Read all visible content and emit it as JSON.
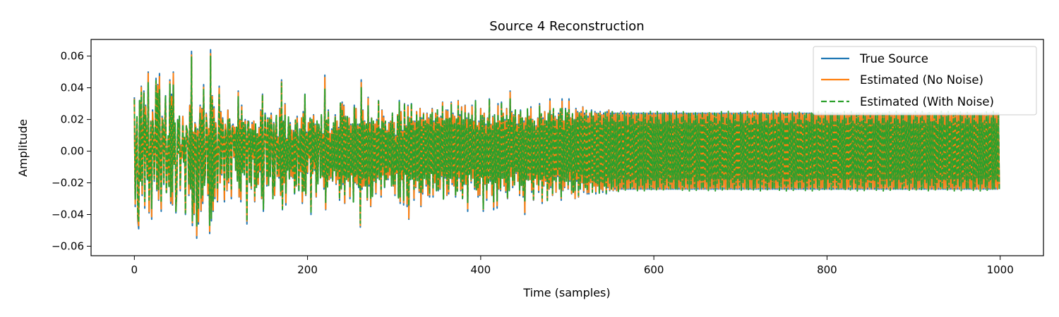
{
  "chart_data": {
    "type": "line",
    "title": "Source 4 Reconstruction",
    "xlabel": "Time (samples)",
    "ylabel": "Amplitude",
    "xlim": [
      -50,
      1050
    ],
    "ylim": [
      -0.066,
      0.0705
    ],
    "x_ticks": [
      0,
      200,
      400,
      600,
      800,
      1000
    ],
    "x_tick_labels": [
      "0",
      "200",
      "400",
      "600",
      "800",
      "1000"
    ],
    "y_ticks": [
      -0.06,
      -0.04,
      -0.02,
      0.0,
      0.02,
      0.04,
      0.06
    ],
    "y_tick_labels": [
      "−0.06",
      "−0.04",
      "−0.02",
      "0.00",
      "0.02",
      "0.04",
      "0.06"
    ],
    "grid": false,
    "legend_position": "top-right",
    "n_samples": 1000,
    "series": [
      {
        "name": "True Source",
        "color": "#1f77b4",
        "style": "solid",
        "values": [
          0.034,
          -0.035,
          0.002,
          0.021,
          -0.044,
          -0.049,
          0.032,
          -0.018,
          0.041,
          -0.028,
          0.012,
          0.038,
          -0.036,
          0.029,
          0.005,
          -0.018,
          0.05,
          -0.039,
          -0.01,
          0.019,
          -0.043,
          0.026,
          0.014,
          -0.019,
          0.008,
          0.046,
          -0.025,
          0.042,
          -0.031,
          0.049,
          -0.012,
          -0.038,
          0.022,
          0.018,
          -0.021,
          0.014,
          0.035,
          -0.026,
          -0.01,
          0.008,
          -0.022,
          0.045,
          -0.033,
          0.036,
          -0.034,
          0.05,
          -0.008,
          0.016,
          -0.039,
          -0.026,
          0.02,
          0.003,
          0.022,
          -0.025,
          0.004,
          -0.004,
          0.022,
          -0.007,
          0.006,
          -0.04,
          0.016,
          0.013,
          0.004,
          -0.028,
          0.029,
          -0.024,
          0.063,
          -0.047,
          0.012,
          -0.04,
          0.018,
          0.015,
          -0.055,
          0.014,
          -0.046,
          0.012,
          0.029,
          -0.038,
          0.027,
          -0.033,
          0.042,
          -0.02,
          -0.015,
          0.024,
          0.016,
          -0.028,
          0.014,
          -0.052,
          0.064,
          -0.044,
          0.035,
          -0.038,
          0.028,
          -0.03,
          0.018,
          0.003,
          -0.032,
          0.009,
          0.041,
          -0.02,
          0.025,
          -0.015,
          0.021,
          0.01,
          -0.032,
          0.017,
          0.012,
          -0.025,
          0.026,
          -0.02,
          0.02,
          0.012,
          -0.03,
          0.016,
          0.017,
          -0.004,
          0.015,
          -0.012,
          0.013,
          -0.018,
          0.038,
          -0.029,
          0.02,
          -0.032,
          0.029,
          -0.012,
          0.016,
          -0.015,
          0.02,
          0.007,
          -0.046,
          0.019,
          0.019,
          -0.019,
          0.012,
          -0.024,
          0.018,
          -0.005,
          0.019,
          -0.032,
          0.016,
          -0.022,
          0.01,
          -0.021,
          0.015,
          -0.013,
          0.026,
          -0.03,
          0.036,
          -0.038,
          0.003,
          0.024,
          0.012,
          -0.022,
          0.021,
          -0.021,
          0.02,
          -0.016,
          0.024,
          0.01,
          -0.03,
          0.018,
          -0.028,
          0.012,
          0.022,
          -0.016,
          0.009,
          -0.017,
          0.027,
          -0.028,
          0.045,
          -0.037,
          0.019,
          -0.02,
          0.03,
          -0.034,
          0.008,
          -0.011,
          0.02,
          -0.017,
          0.018,
          -0.016,
          0.013,
          -0.017,
          0.013,
          -0.027,
          0.018,
          -0.022,
          0.022,
          0.004,
          -0.025,
          0.014,
          -0.013,
          0.021,
          -0.033,
          0.025,
          -0.025,
          0.036,
          -0.028,
          0.012,
          -0.014,
          0.018,
          -0.004,
          0.021,
          -0.04,
          0.019,
          -0.014,
          0.023,
          -0.012,
          0.017,
          -0.029,
          0.018,
          -0.019,
          0.017,
          0.012,
          -0.015,
          0.022,
          -0.016,
          0.011,
          -0.024,
          0.048,
          -0.037,
          0.019,
          -0.022,
          0.026,
          -0.018,
          0.011,
          -0.017,
          0.014,
          -0.019,
          0.016,
          -0.01,
          0.023,
          -0.021,
          0.019,
          -0.018,
          0.015,
          -0.031,
          0.03,
          -0.024,
          0.031,
          -0.021,
          0.029,
          -0.033,
          0.022,
          -0.016,
          0.021,
          -0.019,
          0.021,
          -0.03,
          0.017,
          -0.015,
          0.016,
          -0.032,
          0.029,
          -0.02,
          0.027,
          -0.021,
          0.017,
          -0.023,
          0.015,
          -0.048,
          0.045,
          -0.024,
          0.026,
          -0.022,
          0.019,
          -0.022,
          0.016,
          -0.031,
          0.034,
          -0.022,
          0.018,
          -0.035,
          0.021,
          -0.028,
          0.018,
          -0.019,
          0.017,
          -0.027,
          0.02,
          -0.017,
          0.032,
          -0.016,
          0.014,
          -0.029,
          0.026,
          -0.015,
          0.022,
          -0.023,
          0.017,
          -0.018,
          0.013,
          -0.018,
          0.018,
          -0.015,
          0.019,
          -0.021,
          0.023,
          -0.022,
          0.018,
          -0.028,
          0.01,
          -0.014,
          0.023,
          -0.029,
          0.032,
          -0.033,
          0.025,
          -0.018,
          0.013,
          -0.034,
          0.03,
          -0.013,
          0.016,
          -0.035,
          0.029,
          -0.043,
          0.021,
          -0.018,
          0.03,
          -0.017,
          0.019,
          -0.031,
          0.019,
          -0.023,
          0.025,
          -0.017,
          0.018,
          -0.026,
          0.027,
          -0.035,
          0.021,
          -0.027,
          0.024,
          -0.015,
          0.019,
          -0.022,
          0.024,
          -0.028,
          0.021,
          -0.029,
          0.022,
          -0.013,
          0.027,
          -0.029,
          0.019,
          -0.02,
          0.024,
          -0.025,
          0.026,
          -0.025,
          0.021,
          -0.024,
          0.022,
          -0.016,
          0.031,
          -0.03,
          0.018,
          -0.017,
          0.026,
          -0.028,
          0.026,
          -0.027,
          0.02,
          -0.015,
          0.031,
          -0.021,
          0.024,
          -0.022,
          0.022,
          -0.029,
          0.019,
          -0.025,
          0.032,
          -0.017,
          0.023,
          -0.025,
          0.028,
          -0.03,
          0.018,
          -0.021,
          0.029,
          -0.021,
          0.021,
          -0.038,
          0.024,
          -0.013,
          0.02,
          -0.02,
          0.029,
          -0.017,
          0.019,
          -0.024,
          0.032,
          -0.024,
          0.016,
          -0.029,
          0.019,
          -0.028,
          0.027,
          -0.016,
          0.021,
          -0.038,
          0.024,
          -0.021,
          0.017,
          -0.031,
          0.021,
          -0.02,
          0.033,
          -0.019,
          0.017,
          -0.028,
          0.022,
          -0.037,
          0.023,
          -0.018,
          0.017,
          -0.036,
          0.03,
          -0.024,
          0.019,
          -0.025,
          0.031,
          -0.016,
          0.024,
          -0.022,
          0.02,
          -0.026,
          0.027,
          -0.03,
          0.019,
          -0.025,
          0.038,
          -0.016,
          0.025,
          -0.023,
          0.023,
          -0.02,
          0.026,
          -0.014,
          0.017,
          -0.019,
          0.023,
          -0.028,
          0.026,
          -0.02,
          0.021,
          -0.029,
          0.019,
          -0.04,
          0.021,
          -0.018,
          0.026,
          -0.018,
          0.022,
          -0.018,
          0.028,
          -0.026,
          0.02,
          -0.031,
          0.017,
          -0.017,
          0.016,
          -0.021,
          0.021,
          -0.026,
          0.03,
          -0.016,
          0.023,
          -0.033,
          0.021,
          -0.022,
          0.025,
          -0.019,
          0.019,
          -0.031,
          0.024,
          -0.024,
          0.033,
          -0.023,
          0.023,
          -0.028,
          0.026,
          -0.017,
          0.022,
          -0.026,
          0.02,
          -0.016,
          0.024,
          -0.024,
          0.026,
          -0.031,
          0.033,
          -0.025,
          0.019,
          -0.023,
          0.027,
          -0.017,
          0.024,
          -0.024,
          0.033,
          -0.019,
          0.021,
          -0.027,
          0.023,
          -0.026,
          0.02,
          -0.03,
          0.027,
          -0.019,
          0.025,
          -0.029,
          0.023,
          -0.024,
          0.025,
          -0.02,
          0.028,
          -0.026,
          0.024,
          -0.022,
          0.025,
          -0.027,
          0.022,
          -0.027,
          0.024,
          -0.02,
          0.026,
          -0.025,
          0.022,
          -0.022,
          0.025,
          -0.027,
          0.024,
          -0.022,
          0.023,
          -0.026,
          0.025,
          -0.024,
          0.023,
          -0.026,
          0.024,
          -0.022,
          0.024,
          -0.027,
          0.025,
          -0.023,
          0.026,
          -0.025,
          0.024,
          -0.023,
          0.025,
          -0.025,
          0.024,
          -0.024,
          0.024,
          -0.025,
          0.024,
          -0.025,
          0.024,
          -0.024,
          0.025,
          -0.024,
          0.024,
          -0.024,
          0.024,
          -0.024,
          0.024,
          -0.024,
          0.024,
          -0.024,
          0.024,
          -0.024,
          0.024,
          -0.024,
          0.024,
          -0.024,
          0.024,
          -0.024,
          0.024,
          -0.024,
          0.024,
          -0.024,
          0.024,
          -0.024,
          0.024,
          -0.024,
          0.024,
          -0.024,
          0.024,
          -0.024,
          0.024,
          -0.024,
          0.024,
          -0.024,
          0.024,
          -0.024,
          0.024,
          -0.024,
          0.024,
          -0.024,
          0.024,
          -0.024,
          0.024,
          -0.024,
          0.024,
          -0.024,
          0.024,
          -0.024,
          0.024,
          -0.024,
          0.024,
          -0.024,
          0.024,
          -0.024,
          0.024,
          -0.024,
          0.024,
          -0.024,
          0.024,
          -0.024,
          0.024,
          -0.024,
          0.024,
          -0.024,
          0.024,
          -0.024,
          0.024,
          -0.024,
          0.024,
          -0.024,
          0.024,
          -0.024,
          0.024,
          -0.024,
          0.024,
          -0.024,
          0.024,
          -0.024,
          0.024,
          -0.024,
          0.024,
          -0.024,
          0.024,
          -0.024,
          0.024,
          -0.024,
          0.024,
          -0.024,
          0.024,
          -0.024,
          0.024,
          -0.024,
          0.024,
          -0.024,
          0.024,
          -0.024,
          0.024,
          -0.024,
          0.024,
          -0.024,
          0.024,
          -0.024,
          0.024,
          -0.024,
          0.024,
          -0.024,
          0.024,
          -0.024,
          0.024,
          -0.024,
          0.024,
          -0.024,
          0.024,
          -0.024,
          0.024,
          -0.024,
          0.024,
          -0.024,
          0.024,
          -0.024,
          0.024,
          -0.024,
          0.024,
          -0.024,
          0.024,
          -0.024,
          0.024,
          -0.024,
          0.024,
          -0.024,
          0.024,
          -0.024,
          0.024,
          -0.024,
          0.024,
          -0.024,
          0.024,
          -0.024,
          0.024,
          -0.024,
          0.024,
          -0.024,
          0.024,
          -0.024,
          0.024,
          -0.024,
          0.024,
          -0.024,
          0.024,
          -0.024,
          0.024,
          -0.024,
          0.024,
          -0.024,
          0.024,
          -0.024,
          0.024,
          -0.024,
          0.024,
          -0.024,
          0.024,
          -0.024,
          0.024,
          -0.024,
          0.024,
          -0.024,
          0.024,
          -0.024,
          0.024,
          -0.024,
          0.024,
          -0.024,
          0.024,
          -0.024,
          0.024,
          -0.024,
          0.024,
          -0.024,
          0.024,
          -0.024,
          0.024,
          -0.024,
          0.024,
          -0.024,
          0.024,
          -0.024,
          0.024,
          -0.024,
          0.024,
          -0.024,
          0.024,
          -0.024,
          0.024,
          -0.024,
          0.024,
          -0.024,
          0.024,
          -0.024,
          0.024,
          -0.024,
          0.024,
          -0.024,
          0.024,
          -0.024,
          0.024,
          -0.024,
          0.024,
          -0.024,
          0.024,
          -0.024,
          0.024,
          -0.024,
          0.024,
          -0.024,
          0.024,
          -0.024,
          0.024,
          -0.024,
          0.024,
          -0.024,
          0.024,
          -0.024,
          0.024,
          -0.024,
          0.024,
          -0.024,
          0.024,
          -0.024,
          0.024,
          -0.024,
          0.024,
          -0.024,
          0.024,
          -0.024,
          0.024,
          -0.024,
          0.024,
          -0.024,
          0.024,
          -0.024,
          0.024,
          -0.024,
          0.024,
          -0.024,
          0.024,
          -0.024,
          0.024,
          -0.024,
          0.024,
          -0.024,
          0.024,
          -0.024,
          0.024,
          -0.024,
          0.024,
          -0.024,
          0.024,
          -0.024,
          0.024,
          -0.024,
          0.024,
          -0.024,
          0.024,
          -0.024,
          0.024,
          -0.024,
          0.024,
          -0.024,
          0.024,
          -0.024,
          0.024,
          -0.024,
          0.024,
          -0.024,
          0.024,
          -0.024,
          0.024,
          -0.024,
          0.024,
          -0.024,
          0.024,
          -0.024,
          0.024,
          -0.024,
          0.024,
          -0.024,
          0.024,
          -0.024,
          0.024,
          -0.024,
          0.024,
          -0.024,
          0.024,
          -0.024,
          0.024,
          -0.024,
          0.024,
          -0.024,
          0.024,
          -0.024,
          0.024,
          -0.024,
          0.024,
          -0.024,
          0.024,
          -0.024,
          0.024,
          -0.024,
          0.024,
          -0.024,
          0.024,
          -0.024,
          0.024,
          -0.024,
          0.024,
          -0.024,
          0.024,
          -0.024,
          0.024,
          -0.024,
          0.024,
          -0.024,
          0.024,
          -0.024,
          0.024,
          -0.024,
          0.024,
          -0.024,
          0.024,
          -0.024,
          0.024,
          -0.024,
          0.024,
          -0.024,
          0.024,
          -0.024,
          0.024,
          -0.024,
          0.024,
          -0.024,
          0.024,
          -0.024,
          0.024,
          -0.024,
          0.024,
          -0.024,
          0.024,
          -0.024,
          0.024,
          -0.024,
          0.024,
          -0.024,
          0.024,
          -0.024,
          0.024,
          -0.024,
          0.024,
          -0.024,
          0.024,
          -0.024,
          0.024,
          -0.024,
          0.024,
          -0.024,
          0.024,
          -0.024,
          0.024,
          -0.024,
          0.024,
          -0.024,
          0.024,
          -0.024,
          0.024,
          -0.024,
          0.024,
          -0.024,
          0.024,
          -0.024,
          0.024,
          -0.024,
          0.024,
          -0.024,
          0.024,
          -0.024,
          0.024,
          -0.024,
          0.024,
          -0.024,
          0.024,
          -0.024,
          0.024,
          -0.024,
          0.024,
          -0.024,
          0.024,
          -0.024,
          0.024,
          -0.024,
          0.024,
          -0.024,
          0.024,
          -0.024,
          0.024,
          -0.024,
          0.024,
          -0.024,
          0.024,
          -0.024,
          0.024,
          -0.024,
          0.024,
          -0.024,
          0.024,
          -0.024,
          0.024,
          -0.024,
          0.024,
          -0.024,
          0.024,
          -0.024,
          0.024,
          -0.024,
          0.024,
          -0.024,
          0.024,
          -0.024,
          0.024,
          -0.024,
          0.024,
          -0.024,
          0.024,
          -0.024,
          0.024,
          -0.024,
          0.024,
          -0.024,
          0.024,
          -0.024,
          0.024,
          -0.024,
          0.024,
          -0.024,
          0.024,
          -0.024,
          0.024,
          -0.024,
          0.024
        ]
      },
      {
        "name": "Estimated (No Noise)",
        "color": "#ff7f0e",
        "style": "solid",
        "values_ref": "True Source"
      },
      {
        "name": "Estimated (With Noise)",
        "color": "#2ca02c",
        "style": "dashed",
        "values_ref": "True Source"
      }
    ]
  }
}
